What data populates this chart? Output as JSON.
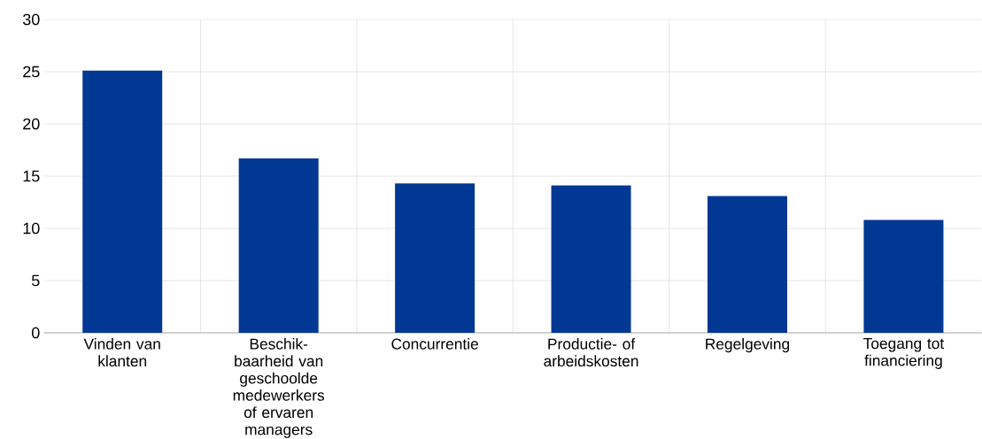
{
  "chart_data": {
    "type": "bar",
    "categories": [
      "Vinden van klanten",
      "Beschik-baarheid van geschoolde medewerkers of ervaren managers",
      "Concurrentie",
      "Productie- of arbeidskosten",
      "Regelgeving",
      "Toegang tot financiering"
    ],
    "values": [
      25.1,
      16.7,
      14.3,
      14.1,
      13.1,
      10.8
    ],
    "color": "#003894",
    "ylim": [
      0,
      30
    ],
    "yticks": [
      0,
      5,
      10,
      15,
      20,
      25,
      30
    ],
    "grid": true
  }
}
